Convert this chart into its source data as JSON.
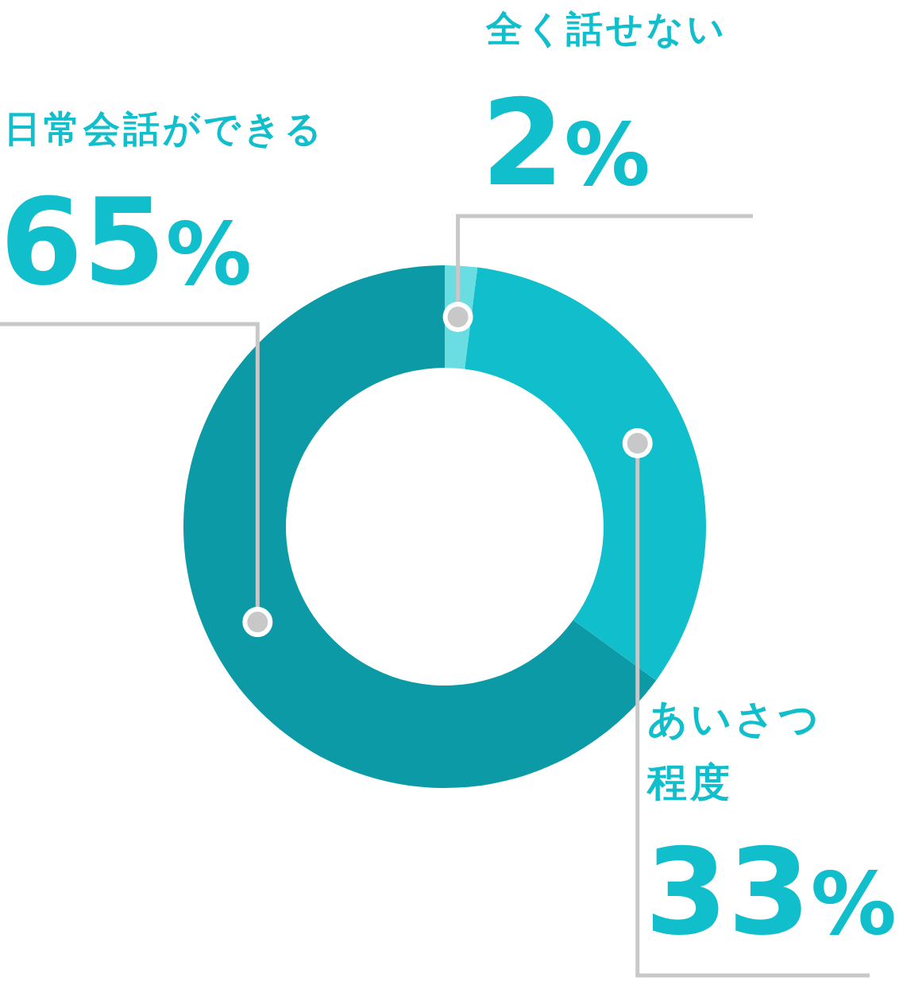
{
  "chart_data": {
    "type": "donut",
    "categories": [
      "全く話せない",
      "あいさつ程度",
      "日常会話ができる"
    ],
    "values": [
      2,
      33,
      65
    ],
    "colors": [
      "#6adde3",
      "#10bfcb",
      "#0c9ba6"
    ],
    "value_labels": [
      "2%",
      "33%",
      "65%"
    ]
  }
}
